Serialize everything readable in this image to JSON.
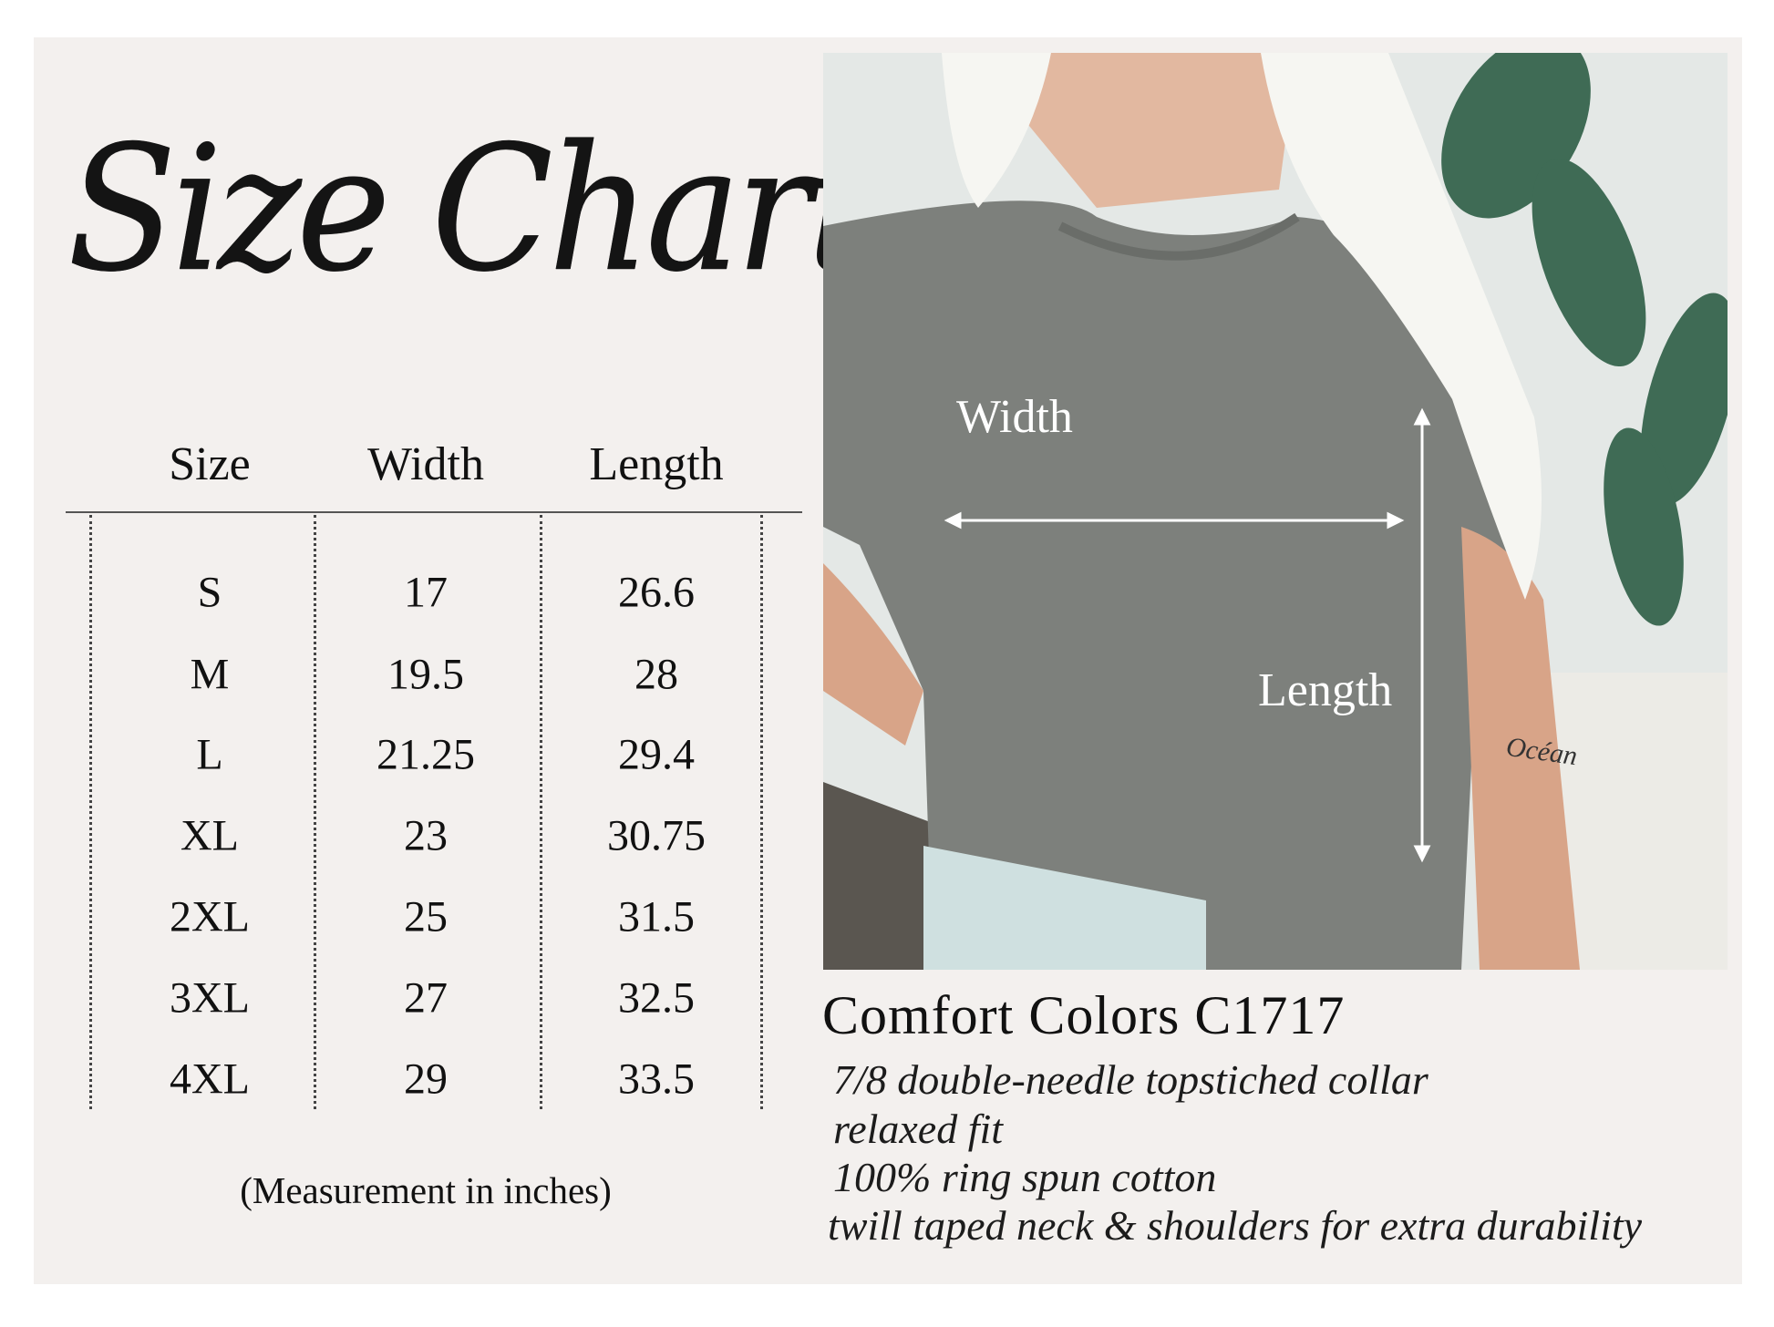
{
  "title": "Size Chart",
  "table": {
    "headers": [
      "Size",
      "Width",
      "Length"
    ],
    "rows": [
      {
        "size": "S",
        "width": "17",
        "length": "26.6"
      },
      {
        "size": "M",
        "width": "19.5",
        "length": "28"
      },
      {
        "size": "L",
        "width": "21.25",
        "length": "29.4"
      },
      {
        "size": "XL",
        "width": "23",
        "length": "30.75"
      },
      {
        "size": "2XL",
        "width": "25",
        "length": "31.5"
      },
      {
        "size": "3XL",
        "width": "27",
        "length": "32.5"
      },
      {
        "size": "4XL",
        "width": "29",
        "length": "33.5"
      }
    ],
    "note": "(Measurement in inches)"
  },
  "photo": {
    "width_label": "Width",
    "length_label": "Length",
    "tattoo_text": "Océan"
  },
  "product": {
    "name": "Comfort Colors C1717",
    "features": [
      "7/8 double-needle topstiched collar",
      "relaxed fit",
      "100% ring spun cotton",
      "twill taped neck & shoulders for extra durability"
    ]
  },
  "colors": {
    "panel": "#f3f0ee",
    "shirt": "#7d807c",
    "text": "#111111"
  }
}
